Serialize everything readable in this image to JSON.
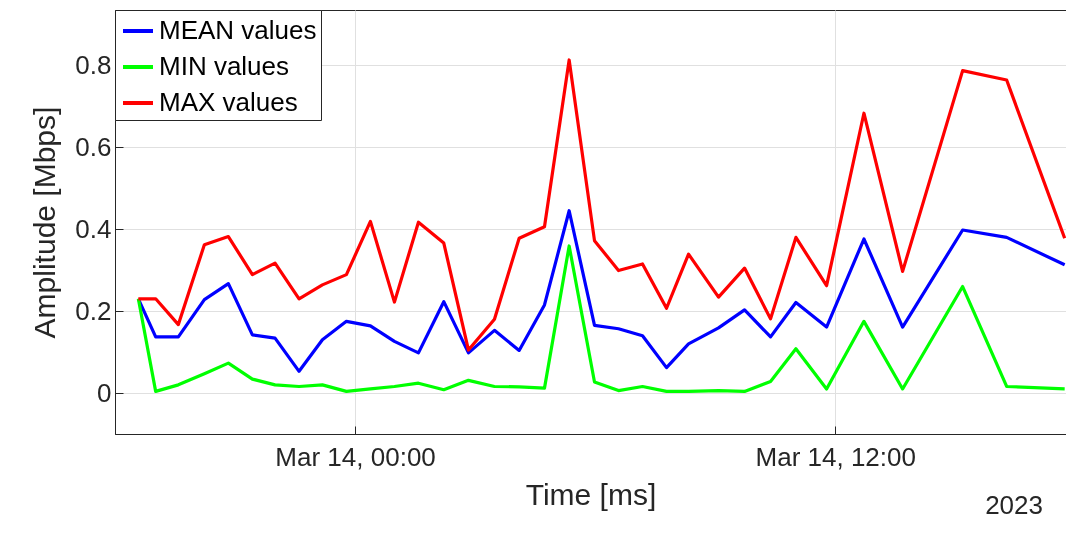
{
  "chart_data": {
    "type": "line",
    "xlabel": "Time [ms]",
    "ylabel": "Amplitude [Mbps]",
    "annotations": [
      "2023"
    ],
    "x": [
      "2023-03-13T18:35",
      "2023-03-13T19:01",
      "2023-03-13T19:35",
      "2023-03-13T20:14",
      "2023-03-13T20:50",
      "2023-03-13T21:26",
      "2023-03-13T22:00",
      "2023-03-13T22:36",
      "2023-03-13T23:11",
      "2023-03-13T23:47",
      "2023-03-14T00:23",
      "2023-03-14T00:59",
      "2023-03-14T01:35",
      "2023-03-14T02:13",
      "2023-03-14T02:50",
      "2023-03-14T03:29",
      "2023-03-14T04:06",
      "2023-03-14T04:44",
      "2023-03-14T05:21",
      "2023-03-14T05:59",
      "2023-03-14T06:35",
      "2023-03-14T07:11",
      "2023-03-14T07:47",
      "2023-03-14T08:20",
      "2023-03-14T09:05",
      "2023-03-14T09:44",
      "2023-03-14T10:23",
      "2023-03-14T11:01",
      "2023-03-14T11:47",
      "2023-03-14T12:43",
      "2023-03-14T13:41",
      "2023-03-14T15:11",
      "2023-03-14T16:17",
      "2023-03-14T17:44"
    ],
    "series": [
      {
        "name": "MEAN values",
        "color": "#0000ff",
        "values": [
          0.23,
          0.137,
          0.137,
          0.228,
          0.267,
          0.142,
          0.134,
          0.053,
          0.13,
          0.175,
          0.164,
          0.126,
          0.098,
          0.223,
          0.098,
          0.153,
          0.104,
          0.215,
          0.445,
          0.165,
          0.157,
          0.14,
          0.062,
          0.12,
          0.159,
          0.203,
          0.137,
          0.221,
          0.161,
          0.376,
          0.161,
          0.398,
          0.38,
          0.313
        ]
      },
      {
        "name": "MIN values",
        "color": "#00ff00",
        "values": [
          0.23,
          0.004,
          0.02,
          0.047,
          0.073,
          0.034,
          0.02,
          0.016,
          0.02,
          0.004,
          0.01,
          0.016,
          0.024,
          0.008,
          0.031,
          0.016,
          0.015,
          0.012,
          0.359,
          0.027,
          0.006,
          0.016,
          0.004,
          0.004,
          0.006,
          0.004,
          0.028,
          0.108,
          0.01,
          0.175,
          0.01,
          0.26,
          0.016,
          0.01
        ]
      },
      {
        "name": "MAX values",
        "color": "#ff0000",
        "values": [
          0.23,
          0.23,
          0.167,
          0.362,
          0.382,
          0.289,
          0.317,
          0.23,
          0.264,
          0.289,
          0.419,
          0.222,
          0.417,
          0.366,
          0.105,
          0.18,
          0.378,
          0.406,
          0.813,
          0.372,
          0.299,
          0.315,
          0.207,
          0.339,
          0.234,
          0.305,
          0.181,
          0.38,
          0.262,
          0.683,
          0.297,
          0.787,
          0.764,
          0.378
        ]
      }
    ],
    "xlim": [
      "2023-03-13T18:00",
      "2023-03-14T17:46"
    ],
    "xticks": [
      {
        "value": "2023-03-14T00:00",
        "label": "Mar 14, 00:00"
      },
      {
        "value": "2023-03-14T12:00",
        "label": "Mar 14, 12:00"
      }
    ],
    "ylim": [
      -0.1,
      0.935
    ],
    "yticks": [
      0,
      0.2,
      0.4,
      0.6,
      0.8
    ],
    "grid": true,
    "legend": "top left",
    "line_style": "solid"
  }
}
